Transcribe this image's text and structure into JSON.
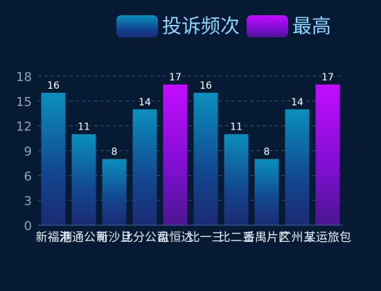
{
  "legend": {
    "series_label": "投诉频次",
    "max_label": "最高"
  },
  "colors": {
    "background": "#061a33",
    "bar_top": "#0b8fbd",
    "bar_bottom": "#1b2a74",
    "max_top": "#c30cff",
    "max_bottom": "#4b168f",
    "axis_text": "#8fa3b8",
    "value_text": "#ffffff",
    "category_text": "#e6edf5",
    "grid": "#2c5a7a"
  },
  "chart_data": {
    "type": "bar",
    "title": "",
    "xlabel": "",
    "ylabel": "",
    "categories": [
      "新福港",
      "测通公司",
      "新沙旦",
      "比分公司",
      "盘恒达",
      "比一三",
      "比二三",
      "番禺片区",
      "广州三",
      "某运旅包"
    ],
    "series": [
      {
        "name": "投诉频次",
        "values": [
          16,
          11,
          8,
          14,
          17,
          16,
          11,
          8,
          14,
          17
        ]
      }
    ],
    "highlight_max": true,
    "ylim": [
      0,
      18
    ],
    "yticks": [
      0,
      3,
      6,
      9,
      12,
      15,
      18
    ],
    "grid": true,
    "legend_position": "top-center"
  }
}
